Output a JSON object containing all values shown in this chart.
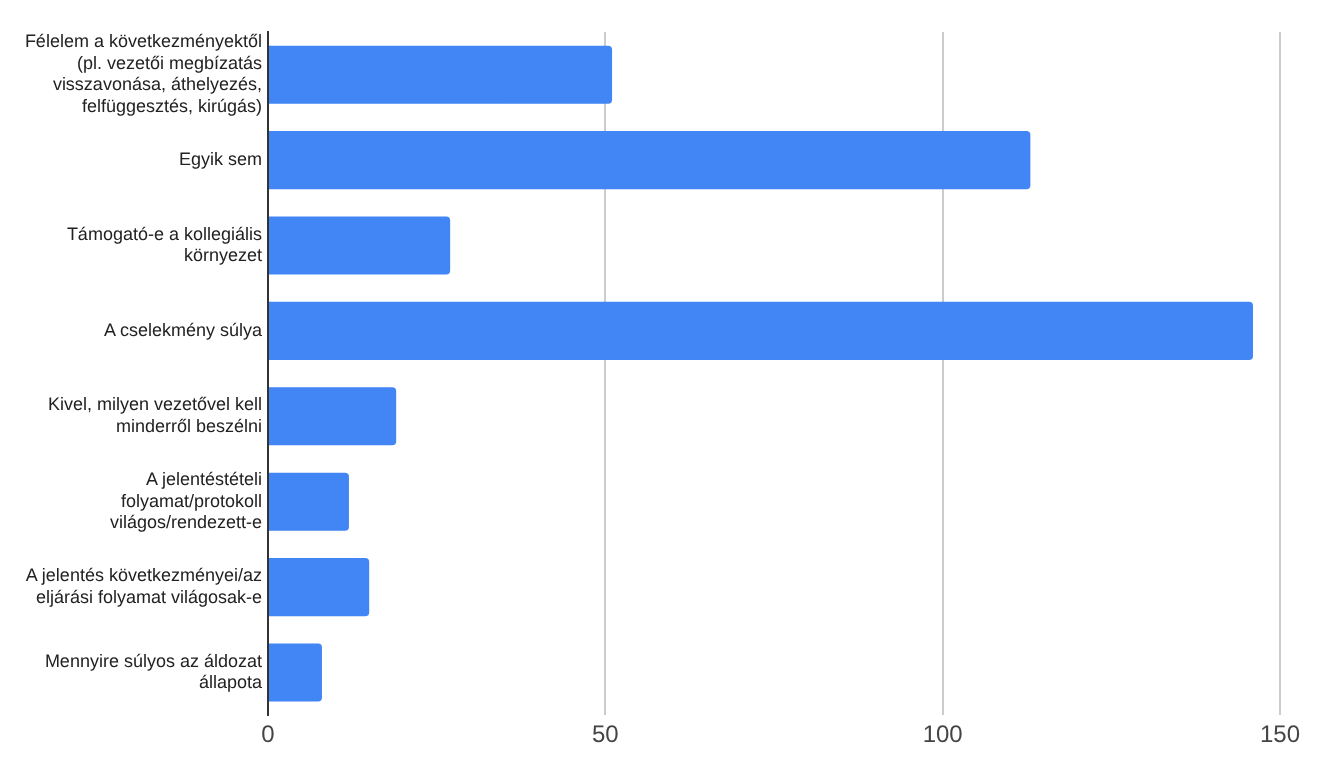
{
  "chart_data": {
    "type": "bar",
    "orientation": "horizontal",
    "categories": [
      "Félelem a következményektől (pl. vezetői megbízatás visszavonása, áthelyezés, felfüggesztés, kirúgás)",
      "Egyik sem",
      "Támogató-e a kollegiális környezet",
      "A cselekmény súlya",
      "Kivel, milyen vezetővel kell minderről beszélni",
      "A jelentéstételi folyamat/protokoll világos/rendezett-e",
      "A jelentés következményei/az eljárási folyamat világosak-e",
      "Mennyire súlyos az áldozat állapota"
    ],
    "values": [
      51,
      113,
      27,
      146,
      19,
      12,
      15,
      8
    ],
    "color": "#4285f4",
    "xlim": [
      0,
      150
    ],
    "xticks": [
      0,
      50,
      100,
      150
    ],
    "grid": "x",
    "legend": false
  }
}
